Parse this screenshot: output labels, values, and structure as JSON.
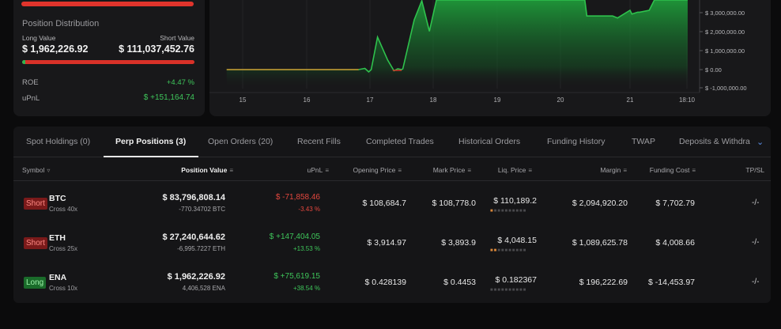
{
  "position_distribution": {
    "title": "Position Distribution",
    "long_label": "Long Value",
    "short_label": "Short Value",
    "long_value": "$ 1,962,226.92",
    "short_value": "$ 111,037,452.76",
    "long_share": 0.017,
    "roe_label": "ROE",
    "roe_value": "+4.47 %",
    "upnl_label": "uPnL",
    "upnl_value": "$ +151,164.74"
  },
  "chart_data": {
    "type": "area",
    "x_ticks": [
      "15",
      "16",
      "17",
      "18",
      "19",
      "20",
      "21",
      "18:10"
    ],
    "y_ticks": [
      "$ 3,000,000.00",
      "$ 2,000,000.00",
      "$ 1,000,000.00",
      "$ 0.00",
      "$ -1,000,000.00"
    ],
    "ylim": [
      -1000000,
      3700000
    ],
    "series": [
      {
        "values": [
          [
            14.75,
            0
          ],
          [
            16.5,
            0
          ],
          [
            16.82,
            0
          ],
          [
            16.92,
            60000
          ],
          [
            16.98,
            -120000
          ],
          [
            17.02,
            0
          ],
          [
            17.12,
            1700000
          ],
          [
            17.2,
            1100000
          ],
          [
            17.28,
            500000
          ],
          [
            17.38,
            -60000
          ],
          [
            17.44,
            40000
          ],
          [
            17.5,
            0
          ],
          [
            17.52,
            40000
          ],
          [
            17.7,
            2600000
          ],
          [
            17.82,
            3600000
          ],
          [
            17.94,
            2000000
          ],
          [
            18.05,
            3700000
          ],
          [
            20.35,
            3700000
          ],
          [
            20.38,
            2800000
          ],
          [
            20.75,
            2800000
          ],
          [
            20.82,
            2700000
          ],
          [
            21.0,
            3100000
          ],
          [
            21.03,
            2900000
          ],
          [
            21.12,
            3000000
          ],
          [
            21.15,
            3000000
          ],
          [
            21.3,
            3100000
          ],
          [
            21.38,
            3700000
          ],
          [
            21.9,
            3700000
          ]
        ]
      }
    ],
    "grid": "vertical",
    "line_color": "#2fc24d"
  },
  "tabs": [
    {
      "label": "Spot Holdings (0)",
      "active": false
    },
    {
      "label": "Perp Positions (3)",
      "active": true
    },
    {
      "label": "Open Orders (20)",
      "active": false
    },
    {
      "label": "Recent Fills",
      "active": false
    },
    {
      "label": "Completed Trades",
      "active": false
    },
    {
      "label": "Historical Orders",
      "active": false
    },
    {
      "label": "Funding History",
      "active": false
    },
    {
      "label": "TWAP",
      "active": false
    },
    {
      "label": "Deposits & Withdra",
      "active": false
    }
  ],
  "columns": {
    "symbol": "Symbol",
    "position_value": "Position Value",
    "upnl": "uPnL",
    "opening_price": "Opening Price",
    "mark_price": "Mark Price",
    "liq_price": "Liq. Price",
    "margin": "Margin",
    "funding_cost": "Funding Cost",
    "tpsl": "TP/SL"
  },
  "rows": [
    {
      "side": "Short",
      "symbol": "BTC",
      "leverage": "Cross 40x",
      "position_value": "$ 83,796,808.14",
      "size": "-770.34702 BTC",
      "upnl": "$ -71,858.46",
      "upnl_pct": "-3.43 %",
      "upnl_positive": false,
      "opening_price": "$ 108,684.7",
      "mark_price": "$ 108,778.0",
      "liq_price": "$ 110,189.2",
      "margin": "$ 2,094,920.20",
      "funding_cost": "$ 7,702.79",
      "funding_positive": true,
      "tpsl": "-/-"
    },
    {
      "side": "Short",
      "symbol": "ETH",
      "leverage": "Cross 25x",
      "position_value": "$ 27,240,644.62",
      "size": "-6,995.7227 ETH",
      "upnl": "$ +147,404.05",
      "upnl_pct": "+13.53 %",
      "upnl_positive": true,
      "opening_price": "$ 3,914.97",
      "mark_price": "$ 3,893.9",
      "liq_price": "$ 4,048.15",
      "margin": "$ 1,089,625.78",
      "funding_cost": "$ 4,008.66",
      "funding_positive": true,
      "tpsl": "-/-"
    },
    {
      "side": "Long",
      "symbol": "ENA",
      "leverage": "Cross 10x",
      "position_value": "$ 1,962,226.92",
      "size": "4,406,528 ENA",
      "upnl": "$ +75,619.15",
      "upnl_pct": "+38.54 %",
      "upnl_positive": true,
      "opening_price": "$ 0.428139",
      "mark_price": "$ 0.4453",
      "liq_price": "$ 0.182367",
      "margin": "$ 196,222.69",
      "funding_cost": "$ -14,453.97",
      "funding_positive": false,
      "tpsl": "-/-"
    }
  ]
}
